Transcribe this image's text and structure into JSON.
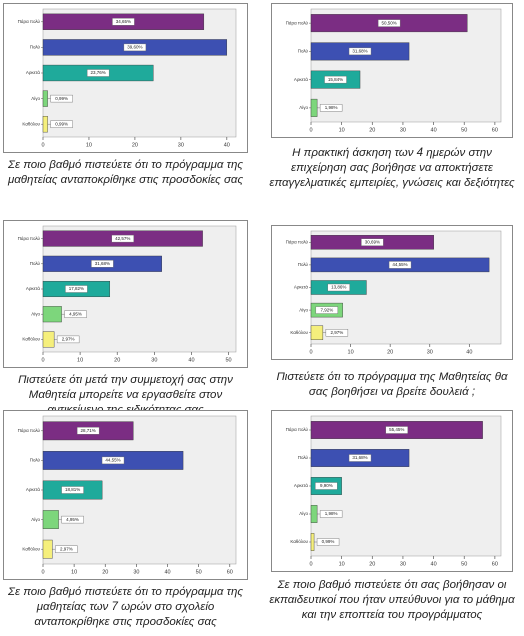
{
  "chart_data": [
    {
      "type": "bar",
      "orientation": "horizontal",
      "title": "Σε ποιο βαθμό πιστεύετε ότι το πρόγραμμα της μαθητείας ανταποκρίθηκε στις προσδοκίες σας",
      "categories": [
        "Πάρα πολύ",
        "Πολύ",
        "Αρκετά",
        "Λίγο",
        "Καθόλου"
      ],
      "values": [
        35,
        40,
        24,
        1,
        1
      ],
      "value_labels": [
        "34,65%",
        "39,60%",
        "23,76%",
        "0,99%",
        "0,99%"
      ],
      "colors": [
        "#7b2d83",
        "#3d50b2",
        "#1faa9b",
        "#7dd67c",
        "#f5ef7c"
      ],
      "xlim": [
        0,
        42
      ],
      "xticks": [
        0,
        10,
        20,
        30,
        40
      ]
    },
    {
      "type": "bar",
      "orientation": "horizontal",
      "title": "Η πρακτική άσκηση των 4 ημερών στην επιχείρηση σας βοήθησε να αποκτήσετε επαγγελματικές εμπειρίες, γνώσεις και δεξιότητες",
      "categories": [
        "Πάρα πολύ",
        "Πολύ",
        "Αρκετά",
        "Λίγο"
      ],
      "values": [
        51,
        32,
        16,
        2
      ],
      "value_labels": [
        "50,50%",
        "31,68%",
        "15,84%",
        "1,98%"
      ],
      "colors": [
        "#7b2d83",
        "#3d50b2",
        "#1faa9b",
        "#7dd67c"
      ],
      "xlim": [
        0,
        62
      ],
      "xticks": [
        0,
        10,
        20,
        30,
        40,
        50,
        60
      ]
    },
    {
      "type": "bar",
      "orientation": "horizontal",
      "title": "Πιστεύετε ότι μετά την συμμετοχή σας στην Μαθητεία μπορείτε να εργασθείτε στον αντικείμενο της ειδικότητας σας",
      "categories": [
        "Πάρα πολύ",
        "Πολύ",
        "Αρκετά",
        "Λίγο",
        "Καθόλου"
      ],
      "values": [
        43,
        32,
        18,
        5,
        3
      ],
      "value_labels": [
        "42,57%",
        "31,68%",
        "17,82%",
        "4,95%",
        "2,97%"
      ],
      "colors": [
        "#7b2d83",
        "#3d50b2",
        "#1faa9b",
        "#7dd67c",
        "#f5ef7c"
      ],
      "xlim": [
        0,
        52
      ],
      "xticks": [
        0,
        10,
        20,
        30,
        40,
        50
      ]
    },
    {
      "type": "bar",
      "orientation": "horizontal",
      "title": "Πιστεύετε ότι το πρόγραμμα της Μαθητείας θα σας βοηθήσει να βρείτε δουλειά ;",
      "categories": [
        "Πάρα πολύ",
        "Πολύ",
        "Αρκετά",
        "Λίγο",
        "Καθόλου"
      ],
      "values": [
        31,
        45,
        14,
        8,
        3
      ],
      "value_labels": [
        "30,69%",
        "44,55%",
        "13,86%",
        "7,92%",
        "2,97%"
      ],
      "colors": [
        "#7b2d83",
        "#3d50b2",
        "#1faa9b",
        "#7dd67c",
        "#f5ef7c"
      ],
      "xlim": [
        0,
        48
      ],
      "xticks": [
        0,
        10,
        20,
        30,
        40
      ]
    },
    {
      "type": "bar",
      "orientation": "horizontal",
      "title": "Σε ποιο βαθμό πιστεύετε ότι το πρόγραμμα της μαθητείας των 7 ωρών στο σχολείο ανταποκρίθηκε στις προσδοκίες σας",
      "categories": [
        "Πάρα πολύ",
        "Πολύ",
        "Αρκετά",
        "Λίγο",
        "Καθόλου"
      ],
      "values": [
        29,
        45,
        19,
        5,
        3
      ],
      "value_labels": [
        "28,71%",
        "44,55%",
        "18,81%",
        "4,95%",
        "2,97%"
      ],
      "colors": [
        "#7b2d83",
        "#3d50b2",
        "#1faa9b",
        "#7dd67c",
        "#f5ef7c"
      ],
      "xlim": [
        0,
        62
      ],
      "xticks": [
        0,
        10,
        20,
        30,
        40,
        50,
        60
      ]
    },
    {
      "type": "bar",
      "orientation": "horizontal",
      "title": "Σε ποιο βαθμό πιστεύετε ότι σας βοήθησαν οι εκπαιδευτικοί που ήταν υπεύθυνοι για το μάθημα και την εποπτεία του προγράμματος",
      "categories": [
        "Πάρα πολύ",
        "Πολύ",
        "Αρκετά",
        "Λίγο",
        "Καθόλου"
      ],
      "values": [
        56,
        32,
        10,
        2,
        1
      ],
      "value_labels": [
        "55,45%",
        "31,68%",
        "9,90%",
        "1,98%",
        "0,99%"
      ],
      "colors": [
        "#7b2d83",
        "#3d50b2",
        "#1faa9b",
        "#7dd67c",
        "#f5ef7c"
      ],
      "xlim": [
        0,
        62
      ],
      "xticks": [
        0,
        10,
        20,
        30,
        40,
        50,
        60
      ]
    }
  ]
}
